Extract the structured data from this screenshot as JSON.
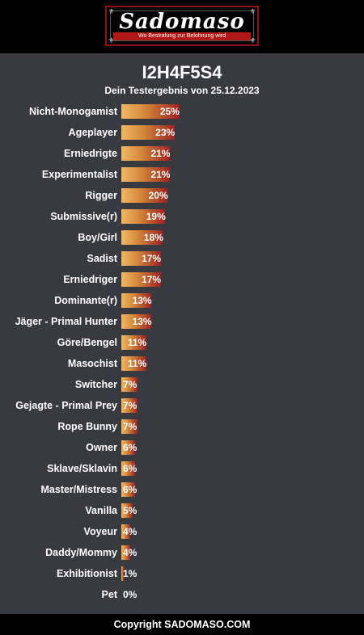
{
  "header": {
    "logo_text": "Sadomaso",
    "logo_tagline": "Wo Bestrafung zur Belohnung wird",
    "logo_icon": "fleur-de-lis-icon"
  },
  "result": {
    "title": "I2H4F5S4",
    "subtitle": "Dein Testergebnis von 25.12.2023"
  },
  "chart_data": {
    "type": "bar",
    "orientation": "horizontal",
    "categories": [
      "Nicht-Monogamist",
      "Ageplayer",
      "Erniedrigte",
      "Experimentalist",
      "Rigger",
      "Submissive(r)",
      "Boy/Girl",
      "Sadist",
      "Erniedriger",
      "Dominante(r)",
      "Jäger - Primal Hunter",
      "Göre/Bengel",
      "Masochist",
      "Switcher",
      "Gejagte - Primal Prey",
      "Rope Bunny",
      "Owner",
      "Sklave/Sklavin",
      "Master/Mistress",
      "Vanilla",
      "Voyeur",
      "Daddy/Mommy",
      "Exhibitionist",
      "Pet"
    ],
    "values": [
      25,
      23,
      21,
      21,
      20,
      19,
      18,
      17,
      17,
      13,
      13,
      11,
      11,
      7,
      7,
      7,
      6,
      6,
      6,
      5,
      4,
      4,
      1,
      0
    ],
    "value_labels": [
      "25%",
      "23%",
      "21%",
      "21%",
      "20%",
      "19%",
      "18%",
      "17%",
      "17%",
      "13%",
      "13%",
      "11%",
      "11%",
      "7%",
      "7%",
      "7%",
      "6%",
      "6%",
      "6%",
      "5%",
      "4%",
      "4%",
      "1%",
      "0%"
    ],
    "unit": "%",
    "title": "I2H4F5S4",
    "subtitle": "Dein Testergebnis von 25.12.2023",
    "colors": {
      "bar_start": "#f0b865",
      "bar_end": "#9c2220",
      "background": "#383a40"
    }
  },
  "footer": {
    "text": "Copyright SADOMASO.COM"
  }
}
